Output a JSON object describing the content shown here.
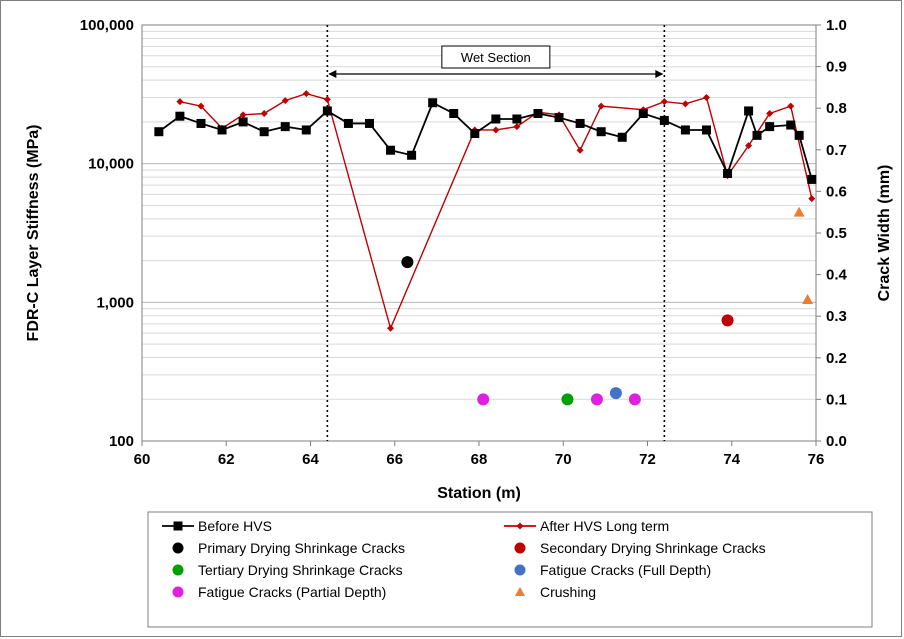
{
  "chart_data": {
    "type": "line",
    "xlabel": "Station (m)",
    "ylabel": "FDR-C Layer Stiffness (MPa)",
    "y2label": "Crack Width (mm)",
    "xlim": [
      60,
      76
    ],
    "x_ticks": [
      "60",
      "62",
      "64",
      "66",
      "68",
      "70",
      "72",
      "74",
      "76"
    ],
    "ylim": [
      100,
      100000
    ],
    "y_scale": "log",
    "y_ticks": [
      "100",
      "1,000",
      "10,000",
      "100,000"
    ],
    "y2lim": [
      0,
      1
    ],
    "y2_ticks": [
      "0.0",
      "0.1",
      "0.2",
      "0.3",
      "0.4",
      "0.5",
      "0.6",
      "0.7",
      "0.8",
      "0.9",
      "1.0"
    ],
    "grid": true,
    "annotation": {
      "label": "Wet Section",
      "x_start": 64.4,
      "x_end": 72.4
    },
    "legend_position": "bottom",
    "series": [
      {
        "name": "Before HVS",
        "type": "line",
        "axis": "left",
        "color": "#000000",
        "marker": "square",
        "x": [
          60.4,
          60.9,
          61.4,
          61.9,
          62.4,
          62.9,
          63.4,
          63.9,
          64.4,
          64.9,
          65.4,
          65.9,
          66.4,
          66.9,
          67.4,
          67.9,
          68.4,
          68.9,
          69.4,
          69.9,
          70.4,
          70.9,
          71.4,
          71.9,
          72.4,
          72.9,
          73.4,
          73.9,
          74.4,
          74.6,
          74.9,
          75.4,
          75.6,
          75.9
        ],
        "y": [
          17000,
          22000,
          19500,
          17500,
          20000,
          17000,
          18500,
          17500,
          24000,
          19500,
          19500,
          12500,
          11500,
          27500,
          23000,
          16500,
          21000,
          21000,
          23000,
          21500,
          19500,
          17000,
          15500,
          23000,
          20500,
          17500,
          17500,
          8500,
          24000,
          16000,
          18500,
          19000,
          16000,
          7700
        ]
      },
      {
        "name": "After HVS Long term",
        "type": "line",
        "axis": "left",
        "color": "#c00000",
        "marker": "diamond",
        "x": [
          60.9,
          61.4,
          61.9,
          62.4,
          62.9,
          63.4,
          63.9,
          64.4,
          65.9,
          67.9,
          68.4,
          68.9,
          69.4,
          69.9,
          70.4,
          70.9,
          71.9,
          72.4,
          72.9,
          73.4,
          73.9,
          74.4,
          74.9,
          75.4,
          75.9
        ],
        "y": [
          28000,
          26000,
          18000,
          22500,
          23000,
          28500,
          32000,
          29000,
          650,
          17500,
          17500,
          18500,
          23500,
          22500,
          12500,
          26000,
          24500,
          28000,
          27000,
          30000,
          8200,
          13500,
          23000,
          26000,
          5600
        ]
      },
      {
        "name": "Primary Drying Shrinkage Cracks",
        "type": "scatter",
        "axis": "right",
        "color": "#000000",
        "marker": "circle",
        "x": [
          66.3
        ],
        "y": [
          0.43
        ]
      },
      {
        "name": "Secondary Drying Shrinkage Cracks",
        "type": "scatter",
        "axis": "right",
        "color": "#c00000",
        "marker": "circle",
        "x": [
          73.9
        ],
        "y": [
          0.29
        ]
      },
      {
        "name": "Tertiary Drying Shrinkage Cracks",
        "type": "scatter",
        "axis": "right",
        "color": "#00a000",
        "marker": "circle",
        "x": [
          70.1
        ],
        "y": [
          0.1
        ]
      },
      {
        "name": "Fatigue Cracks (Full Depth)",
        "type": "scatter",
        "axis": "right",
        "color": "#4472c4",
        "marker": "circle",
        "x": [
          71.25
        ],
        "y": [
          0.115
        ]
      },
      {
        "name": "Fatigue Cracks (Partial Depth)",
        "type": "scatter",
        "axis": "right",
        "color": "#e020e0",
        "marker": "circle",
        "x": [
          68.1,
          70.8,
          71.7
        ],
        "y": [
          0.1,
          0.1,
          0.1
        ]
      },
      {
        "name": "Crushing",
        "type": "scatter",
        "axis": "right",
        "color": "#ed7d31",
        "marker": "triangle",
        "x": [
          75.6,
          75.8
        ],
        "y": [
          0.55,
          0.34
        ]
      }
    ]
  }
}
